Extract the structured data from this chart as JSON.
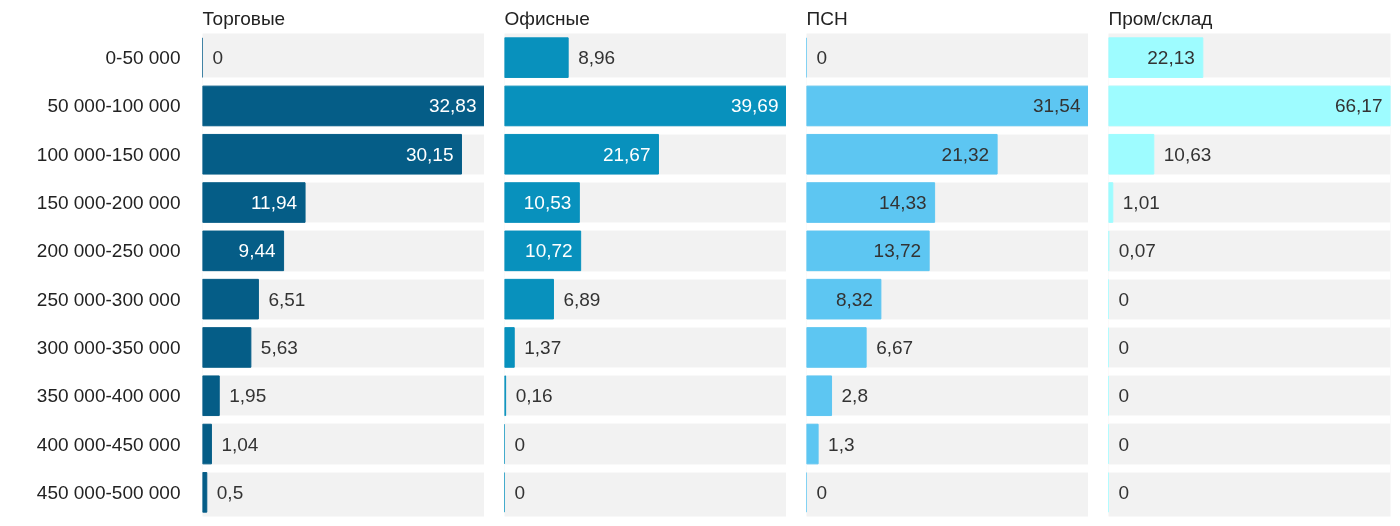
{
  "chart_data": [
    {
      "type": "bar",
      "orientation": "horizontal",
      "title": "Торговые",
      "categories": [
        "0-50 000",
        "50 000-100 000",
        "100 000-150 000",
        "150 000-200 000",
        "200 000-250 000",
        "250 000-300 000",
        "300 000-350 000",
        "350 000-400 000",
        "400 000-450 000",
        "450 000-500 000"
      ],
      "values": [
        0,
        32.83,
        30.15,
        11.94,
        9.44,
        6.51,
        5.63,
        1.95,
        1.04,
        0.5
      ],
      "value_labels": [
        "0",
        "32,83",
        "30,15",
        "11,94",
        "9,44",
        "6,51",
        "5,63",
        "1,95",
        "1,04",
        "0,5"
      ],
      "color": "#055d87",
      "tick_labels": "y"
    },
    {
      "type": "bar",
      "orientation": "horizontal",
      "title": "Офисные",
      "values": [
        8.96,
        39.69,
        21.67,
        10.53,
        10.72,
        6.89,
        1.37,
        0.16,
        0,
        0
      ],
      "value_labels": [
        "8,96",
        "39,69",
        "21,67",
        "10,53",
        "10,72",
        "6,89",
        "1,37",
        "0,16",
        "0",
        "0"
      ],
      "color": "#0891bd",
      "tick_labels": false
    },
    {
      "type": "bar",
      "orientation": "horizontal",
      "title": "ПСН",
      "values": [
        0,
        31.54,
        21.32,
        14.33,
        13.72,
        8.32,
        6.67,
        2.8,
        1.3,
        0
      ],
      "value_labels": [
        "0",
        "31,54",
        "21,32",
        "14,33",
        "13,72",
        "8,32",
        "6,67",
        "2,8",
        "1,3",
        "0"
      ],
      "color": "#5dc6f2",
      "tick_labels": false
    },
    {
      "type": "bar",
      "orientation": "horizontal",
      "title": "Пром/склад",
      "values": [
        22.13,
        66.17,
        10.63,
        1.01,
        0.07,
        0,
        0,
        0,
        0,
        0
      ],
      "value_labels": [
        "22,13",
        "66,17",
        "10,63",
        "1,01",
        "0,07",
        "0",
        "0",
        "0",
        "0",
        "0"
      ],
      "color": "#9efcff",
      "tick_labels": false
    }
  ]
}
